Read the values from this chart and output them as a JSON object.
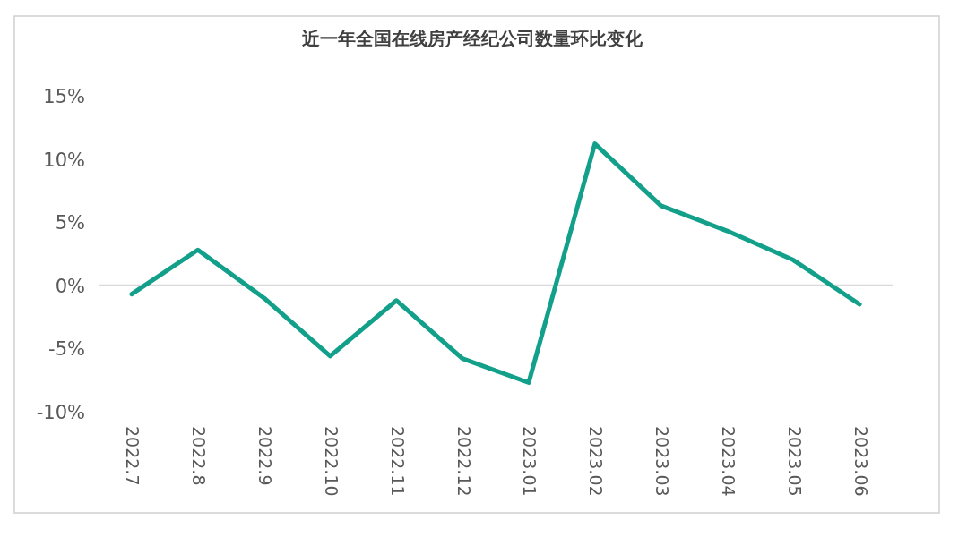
{
  "chart_data": {
    "type": "line",
    "title": "近一年全国在线房产经纪公司数量环比变化",
    "categories": [
      "2022.7",
      "2022.8",
      "2022.9",
      "2022.10",
      "2022.11",
      "2022.12",
      "2023.01",
      "2023.02",
      "2023.03",
      "2023.04",
      "2023.05",
      "2023.06"
    ],
    "series": [
      {
        "color": "#12a08a",
        "values": [
          -0.7,
          2.8,
          -1.0,
          -5.6,
          -1.2,
          -5.8,
          -7.7,
          11.2,
          6.3,
          4.3,
          2.0,
          -1.5
        ]
      }
    ],
    "ylim": [
      -10,
      15
    ],
    "yticks": [
      {
        "value": -10,
        "label": "-10%"
      },
      {
        "value": -5,
        "label": "-5%"
      },
      {
        "value": 0,
        "label": "0%"
      },
      {
        "value": 5,
        "label": "5%"
      },
      {
        "value": 10,
        "label": "10%"
      },
      {
        "value": 15,
        "label": "15%"
      }
    ],
    "ref_lines": [
      {
        "axis": "y",
        "value": 0,
        "color": "#d9d9d9"
      }
    ],
    "marker": "none",
    "line_style": "solid"
  }
}
